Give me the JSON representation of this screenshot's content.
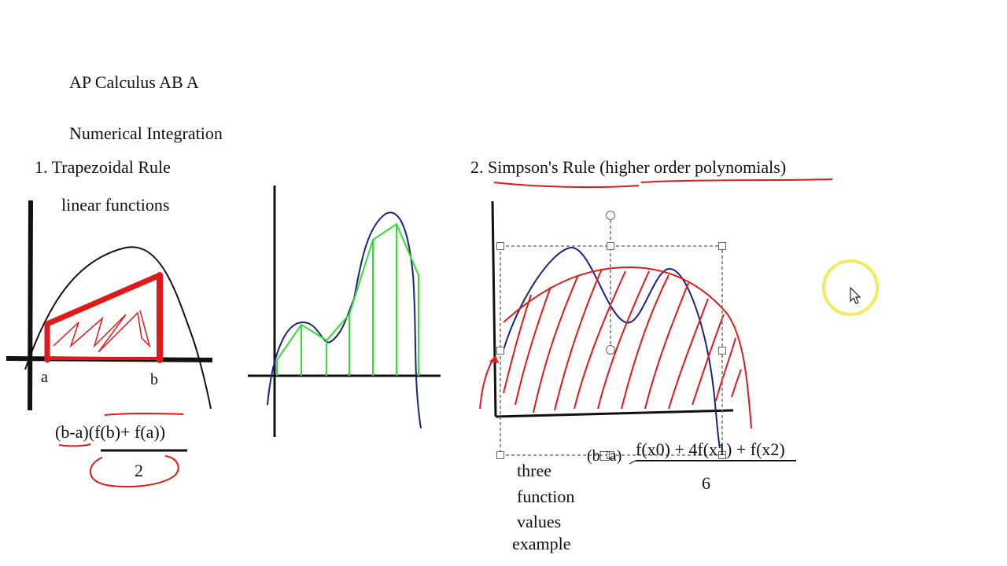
{
  "slide": {
    "course_title": "AP Calculus AB A",
    "topic_title": "Numerical Integration",
    "trapezoid_heading": "1. Trapezoidal Rule",
    "trapezoid_note": "linear functions",
    "label_a": "a",
    "label_b": "b",
    "trap_formula_numerator": "(b-a)(f(b)+ f(a))",
    "trap_formula_denominator": "2",
    "simpson_heading_prefix": "2. ",
    "simpson_heading_name": "Simpson's Rule",
    "simpson_heading_paren": "(higher order polynomials)",
    "simpson_formula_factor": "(b□a)",
    "simpson_formula_numerator": "f(x0) + 4f(x1) + f(x2)",
    "simpson_formula_denominator": "6",
    "simpson_note_lines": [
      "three",
      "function",
      "values",
      "example"
    ]
  },
  "colors": {
    "ink": "#111111",
    "annotation_red": "#e0191a",
    "trap_green": "#33dd33",
    "curve_blue": "#1a237e",
    "cursor_ring": "#f2ec5c",
    "selection": "#777777"
  }
}
